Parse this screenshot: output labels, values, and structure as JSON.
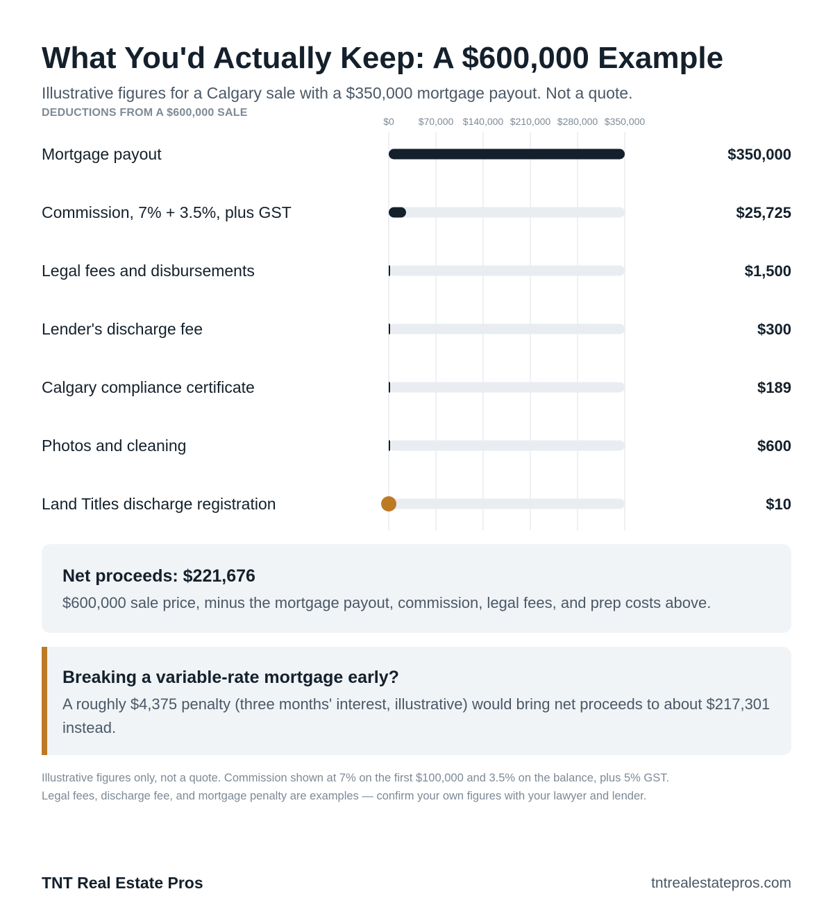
{
  "header": {
    "title": "What You'd Actually Keep: A $600,000 Example",
    "subtitle": "Illustrative figures for a Calgary sale with a $350,000 mortgage payout. Not a quote.",
    "section_label": "DEDUCTIONS FROM A $600,000 SALE"
  },
  "chart_data": {
    "type": "bar",
    "orientation": "horizontal",
    "xlim": [
      0,
      350000
    ],
    "ticks": [
      0,
      70000,
      140000,
      210000,
      280000,
      350000
    ],
    "tick_labels": [
      "$0",
      "$70,000",
      "$140,000",
      "$210,000",
      "$280,000",
      "$350,000"
    ],
    "categories": [
      "Mortgage payout",
      "Commission, 7% + 3.5%, plus GST",
      "Legal fees and disbursements",
      "Lender's discharge fee",
      "Calgary compliance certificate",
      "Photos and cleaning",
      "Land Titles discharge registration"
    ],
    "values": [
      350000,
      25725,
      1500,
      300,
      189,
      600,
      10
    ],
    "value_labels": [
      "$350,000",
      "$25,725",
      "$1,500",
      "$300",
      "$189",
      "$600",
      "$10"
    ],
    "highlight_index": 6,
    "grid": true,
    "colors": {
      "bar": "#14202b",
      "track": "#e9edf1",
      "highlight": "#bd7a25",
      "grid": "#dde2e7"
    }
  },
  "net_card": {
    "title": "Net proceeds: $221,676",
    "body": "$600,000 sale price, minus the mortgage payout, commission, legal fees, and prep costs above."
  },
  "penalty_card": {
    "title": "Breaking a variable-rate mortgage early?",
    "body": "A roughly $4,375 penalty (three months' interest, illustrative) would bring net proceeds to about $217,301 instead.",
    "accent": "#bd7a25"
  },
  "footnote": {
    "line1": "Illustrative figures only, not a quote. Commission shown at 7% on the first $100,000 and 3.5% on the balance, plus 5% GST.",
    "line2": "Legal fees, discharge fee, and mortgage penalty are examples — confirm your own figures with your lawyer and lender."
  },
  "footer": {
    "brand": "TNT Real Estate Pros",
    "site": "tntrealestatepros.com"
  }
}
